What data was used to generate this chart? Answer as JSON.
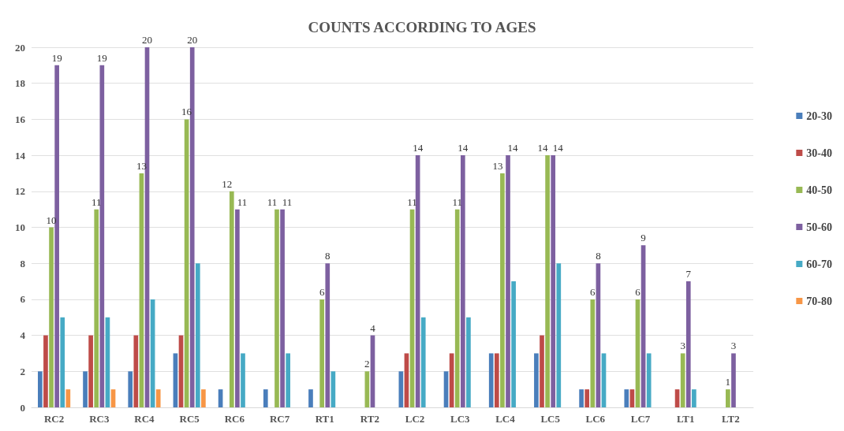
{
  "chart_data": {
    "type": "bar",
    "title": "COUNTS ACCORDING TO AGES",
    "categories": [
      "RC2",
      "RC3",
      "RC4",
      "RC5",
      "RC6",
      "RC7",
      "RT1",
      "RT2",
      "LC2",
      "LC3",
      "LC4",
      "LC5",
      "LC6",
      "LC7",
      "LT1",
      "LT2"
    ],
    "series": [
      {
        "name": "20-30",
        "color": "#4a7ebb",
        "values": [
          2,
          2,
          2,
          3,
          1,
          1,
          1,
          0,
          2,
          2,
          3,
          3,
          1,
          1,
          0,
          0
        ]
      },
      {
        "name": "30-40",
        "color": "#be4b48",
        "values": [
          4,
          4,
          4,
          4,
          0,
          0,
          0,
          0,
          3,
          3,
          3,
          4,
          1,
          1,
          1,
          0
        ]
      },
      {
        "name": "40-50",
        "color": "#98b954",
        "values": [
          10,
          11,
          13,
          16,
          12,
          11,
          6,
          2,
          11,
          11,
          13,
          14,
          6,
          6,
          3,
          1
        ],
        "value_labels": [
          "10",
          "11",
          "13",
          "16",
          "12",
          "11",
          "6",
          "2",
          "11",
          "11",
          "13",
          "14",
          "6",
          "6",
          "3",
          "1"
        ]
      },
      {
        "name": "50-60",
        "color": "#7d60a0",
        "values": [
          19,
          19,
          20,
          20,
          11,
          11,
          8,
          4,
          14,
          14,
          14,
          14,
          8,
          9,
          7,
          3
        ],
        "value_labels": [
          "19",
          "19",
          "20",
          "20",
          "11",
          "11",
          "8",
          "4",
          "14",
          "14",
          "14",
          "14",
          "8",
          "9",
          "7",
          "3"
        ]
      },
      {
        "name": "60-70",
        "color": "#46aac5",
        "values": [
          5,
          5,
          6,
          8,
          3,
          3,
          2,
          0,
          5,
          5,
          7,
          8,
          3,
          3,
          1,
          0
        ]
      },
      {
        "name": "70-80",
        "color": "#f79646",
        "values": [
          1,
          1,
          1,
          1,
          0,
          0,
          0,
          0,
          0,
          0,
          0,
          0,
          0,
          0,
          0,
          0
        ]
      }
    ],
    "ylim": [
      0,
      20
    ],
    "yticks": [
      0,
      2,
      4,
      6,
      8,
      10,
      12,
      14,
      16,
      18,
      20
    ],
    "grid": "y",
    "legend": "right"
  }
}
